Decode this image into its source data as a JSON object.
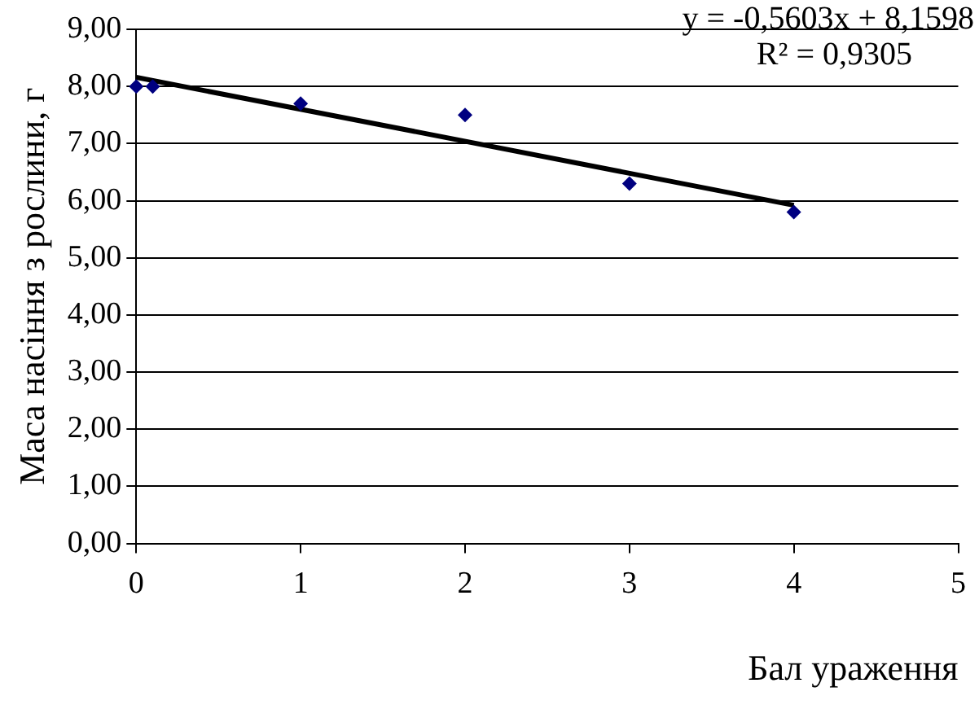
{
  "chart_data": {
    "type": "scatter",
    "xlabel": "Бал ураження",
    "ylabel": "Маса насіння з рослини, г",
    "annotations": [
      "y = -0,5603x + 8,1598",
      "R² = 0,9305"
    ],
    "series": [
      {
        "type": "scatter",
        "color": "#000080",
        "marker": "diamond",
        "x": [
          0,
          0.1,
          1,
          2,
          3,
          4
        ],
        "values": [
          8.0,
          8.0,
          7.7,
          7.5,
          6.3,
          5.8
        ]
      },
      {
        "type": "line",
        "color": "#000000",
        "marker": "none",
        "line_style": "solid",
        "x": [
          0,
          4
        ],
        "values": [
          8.16,
          5.92
        ]
      }
    ],
    "xlim": [
      0,
      5
    ],
    "xticks": [
      0,
      1,
      2,
      3,
      4,
      5
    ],
    "ylim": [
      0,
      9
    ],
    "yticks": [
      {
        "value": 0,
        "label": "0,00"
      },
      {
        "value": 1,
        "label": "1,00"
      },
      {
        "value": 2,
        "label": "2,00"
      },
      {
        "value": 3,
        "label": "3,00"
      },
      {
        "value": 4,
        "label": "4,00"
      },
      {
        "value": 5,
        "label": "5,00"
      },
      {
        "value": 6,
        "label": "6,00"
      },
      {
        "value": 7,
        "label": "7,00"
      },
      {
        "value": 8,
        "label": "8,00"
      },
      {
        "value": 9,
        "label": "9,00"
      }
    ],
    "grid": "y",
    "legend": false
  }
}
